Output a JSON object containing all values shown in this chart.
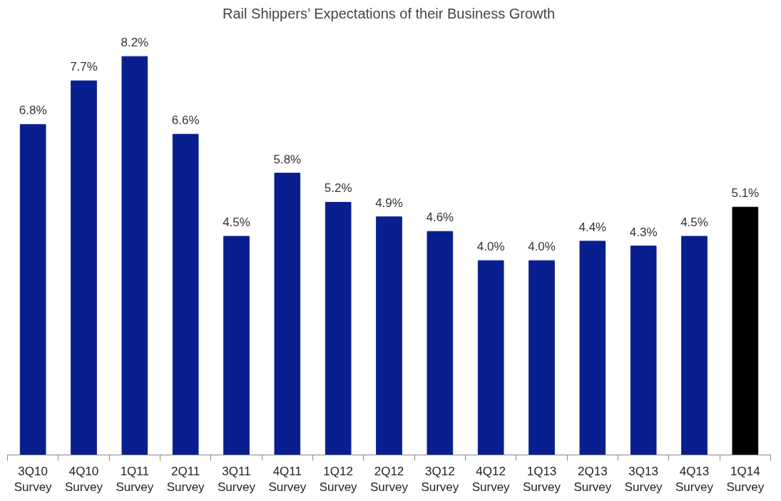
{
  "chart_data": {
    "type": "bar",
    "title": "Rail Shippers’ Expectations of their Business Growth",
    "categories": [
      "3Q10\nSurvey",
      "4Q10\nSurvey",
      "1Q11\nSurvey",
      "2Q11\nSurvey",
      "3Q11\nSurvey",
      "4Q11\nSurvey",
      "1Q12\nSurvey",
      "2Q12\nSurvey",
      "3Q12\nSurvey",
      "4Q12\nSurvey",
      "1Q13\nSurvey",
      "2Q13\nSurvey",
      "3Q13\nSurvey",
      "4Q13\nSurvey",
      "1Q14\nSurvey"
    ],
    "values": [
      6.8,
      7.7,
      8.2,
      6.6,
      4.5,
      5.8,
      5.2,
      4.9,
      4.6,
      4.0,
      4.0,
      4.4,
      4.3,
      4.5,
      5.1
    ],
    "value_labels": [
      "6.8%",
      "7.7%",
      "8.2%",
      "6.6%",
      "4.5%",
      "5.8%",
      "5.2%",
      "4.9%",
      "4.6%",
      "4.0%",
      "4.0%",
      "4.4%",
      "4.3%",
      "4.5%",
      "5.1%"
    ],
    "colors": [
      "#0a1f8f",
      "#0a1f8f",
      "#0a1f8f",
      "#0a1f8f",
      "#0a1f8f",
      "#0a1f8f",
      "#0a1f8f",
      "#0a1f8f",
      "#0a1f8f",
      "#0a1f8f",
      "#0a1f8f",
      "#0a1f8f",
      "#0a1f8f",
      "#0a1f8f",
      "#000000"
    ],
    "grid": false
  }
}
